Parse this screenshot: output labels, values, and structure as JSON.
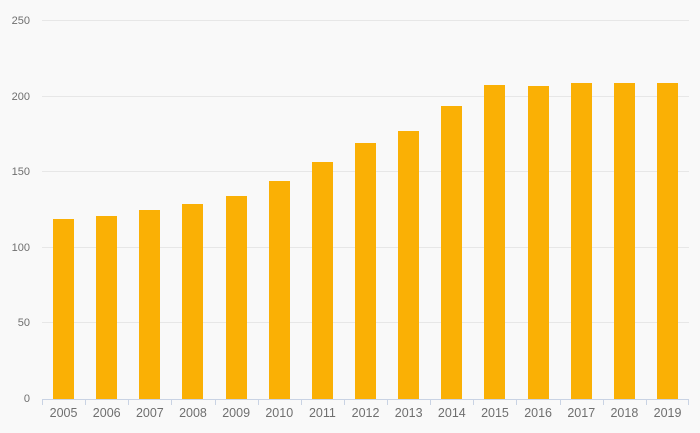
{
  "chart": {
    "background_color": "#f9f9f9",
    "bar_color": "#fab005",
    "gridline_color": "#e7e7e7",
    "axis_line_color": "#c9d3e4",
    "label_color": "#6f6f6f"
  },
  "chart_data": {
    "type": "bar",
    "categories": [
      "2005",
      "2006",
      "2007",
      "2008",
      "2009",
      "2010",
      "2011",
      "2012",
      "2013",
      "2014",
      "2015",
      "2016",
      "2017",
      "2018",
      "2019"
    ],
    "values": [
      119,
      121,
      125,
      129,
      134,
      144,
      157,
      169,
      177,
      194,
      208,
      207,
      209,
      209,
      209
    ],
    "ylim": [
      0,
      250
    ],
    "yticks": [
      0,
      50,
      100,
      150,
      200,
      250
    ],
    "grid": true,
    "legend": false,
    "xlabel": "",
    "ylabel": ""
  }
}
